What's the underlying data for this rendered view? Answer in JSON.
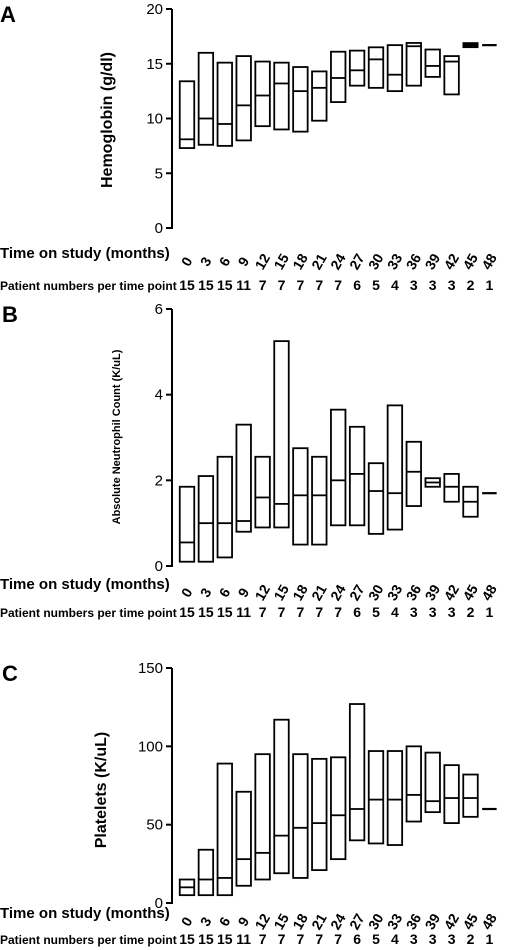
{
  "row_labels": {
    "time": "Time on study (months)",
    "patients": "Patient numbers per time point"
  },
  "chart_data": [
    {
      "type": "box",
      "panel": "A",
      "ylabel": "Hemoglobin (g/dl)",
      "ylim": [
        0,
        20
      ],
      "yticks": [
        0,
        5,
        10,
        15,
        20
      ],
      "categories": [
        "0",
        "3",
        "6",
        "9",
        "12",
        "15",
        "18",
        "21",
        "24",
        "27",
        "30",
        "33",
        "36",
        "39",
        "42",
        "45",
        "48"
      ],
      "patients": [
        "15",
        "15",
        "15",
        "11",
        "7",
        "7",
        "7",
        "7",
        "7",
        "6",
        "5",
        "4",
        "3",
        "3",
        "3",
        "2",
        "1"
      ],
      "boxes": [
        {
          "low": 7.3,
          "mid": 8.1,
          "high": 13.4
        },
        {
          "low": 7.6,
          "mid": 10.0,
          "high": 16.0
        },
        {
          "low": 7.5,
          "mid": 9.5,
          "high": 15.1
        },
        {
          "low": 8.0,
          "mid": 11.2,
          "high": 15.7
        },
        {
          "low": 9.3,
          "mid": 12.1,
          "high": 15.2
        },
        {
          "low": 9.0,
          "mid": 13.2,
          "high": 15.1
        },
        {
          "low": 8.8,
          "mid": 12.5,
          "high": 14.7
        },
        {
          "low": 9.8,
          "mid": 12.8,
          "high": 14.3
        },
        {
          "low": 11.5,
          "mid": 13.7,
          "high": 16.1
        },
        {
          "low": 13.0,
          "mid": 14.4,
          "high": 16.2
        },
        {
          "low": 12.8,
          "mid": 15.4,
          "high": 16.5
        },
        {
          "low": 12.5,
          "mid": 14.0,
          "high": 16.7
        },
        {
          "low": 13.0,
          "mid": 16.6,
          "high": 16.9
        },
        {
          "low": 13.8,
          "mid": 14.8,
          "high": 16.3
        },
        {
          "low": 12.2,
          "mid": 15.2,
          "high": 15.7
        },
        {
          "low": 16.5,
          "mid": 16.7,
          "high": 16.9
        },
        {
          "low": 16.7,
          "mid": 16.7,
          "high": 16.7
        }
      ]
    },
    {
      "type": "box",
      "panel": "B",
      "ylabel": "Absolute Neutrophil Count (K/uL)",
      "ylim": [
        0,
        6
      ],
      "yticks": [
        0,
        2,
        4,
        6
      ],
      "categories": [
        "0",
        "3",
        "6",
        "9",
        "12",
        "15",
        "18",
        "21",
        "24",
        "27",
        "30",
        "33",
        "36",
        "39",
        "42",
        "45",
        "48"
      ],
      "patients": [
        "15",
        "15",
        "15",
        "11",
        "7",
        "7",
        "7",
        "7",
        "7",
        "6",
        "5",
        "4",
        "3",
        "3",
        "3",
        "2",
        "1"
      ],
      "boxes": [
        {
          "low": 0.1,
          "mid": 0.55,
          "high": 1.85
        },
        {
          "low": 0.1,
          "mid": 1.0,
          "high": 2.1
        },
        {
          "low": 0.2,
          "mid": 1.0,
          "high": 2.55
        },
        {
          "low": 0.8,
          "mid": 1.05,
          "high": 3.3
        },
        {
          "low": 0.9,
          "mid": 1.6,
          "high": 2.55
        },
        {
          "low": 0.9,
          "mid": 1.45,
          "high": 5.25
        },
        {
          "low": 0.5,
          "mid": 1.65,
          "high": 2.75
        },
        {
          "low": 0.5,
          "mid": 1.65,
          "high": 2.55
        },
        {
          "low": 0.95,
          "mid": 2.0,
          "high": 3.65
        },
        {
          "low": 0.95,
          "mid": 2.15,
          "high": 3.25
        },
        {
          "low": 0.75,
          "mid": 1.75,
          "high": 2.4
        },
        {
          "low": 0.85,
          "mid": 1.7,
          "high": 3.75
        },
        {
          "low": 1.4,
          "mid": 2.2,
          "high": 2.9
        },
        {
          "low": 1.85,
          "mid": 1.95,
          "high": 2.05
        },
        {
          "low": 1.5,
          "mid": 1.85,
          "high": 2.15
        },
        {
          "low": 1.15,
          "mid": 1.5,
          "high": 1.85
        },
        {
          "low": 1.7,
          "mid": 1.7,
          "high": 1.7
        }
      ]
    },
    {
      "type": "box",
      "panel": "C",
      "ylabel": "Platelets (K/uL)",
      "ylim": [
        0,
        150
      ],
      "yticks": [
        0,
        50,
        100,
        150
      ],
      "categories": [
        "0",
        "3",
        "6",
        "9",
        "12",
        "15",
        "18",
        "21",
        "24",
        "27",
        "30",
        "33",
        "36",
        "39",
        "42",
        "45",
        "48"
      ],
      "patients": [
        "15",
        "15",
        "15",
        "11",
        "7",
        "7",
        "7",
        "7",
        "7",
        "6",
        "5",
        "4",
        "3",
        "3",
        "3",
        "2",
        "1"
      ],
      "boxes": [
        {
          "low": 5,
          "mid": 10,
          "high": 15
        },
        {
          "low": 5,
          "mid": 15,
          "high": 34
        },
        {
          "low": 5,
          "mid": 16,
          "high": 89
        },
        {
          "low": 11,
          "mid": 28,
          "high": 71
        },
        {
          "low": 15,
          "mid": 32,
          "high": 95
        },
        {
          "low": 19,
          "mid": 43,
          "high": 117
        },
        {
          "low": 16,
          "mid": 48,
          "high": 95
        },
        {
          "low": 21,
          "mid": 51,
          "high": 92
        },
        {
          "low": 28,
          "mid": 56,
          "high": 93
        },
        {
          "low": 40,
          "mid": 60,
          "high": 127
        },
        {
          "low": 38,
          "mid": 66,
          "high": 97
        },
        {
          "low": 37,
          "mid": 66,
          "high": 97
        },
        {
          "low": 52,
          "mid": 69,
          "high": 100
        },
        {
          "low": 58,
          "mid": 65,
          "high": 96
        },
        {
          "low": 51,
          "mid": 67,
          "high": 88
        },
        {
          "low": 55,
          "mid": 67,
          "high": 82
        },
        {
          "low": 60,
          "mid": 60,
          "high": 60
        }
      ]
    }
  ]
}
